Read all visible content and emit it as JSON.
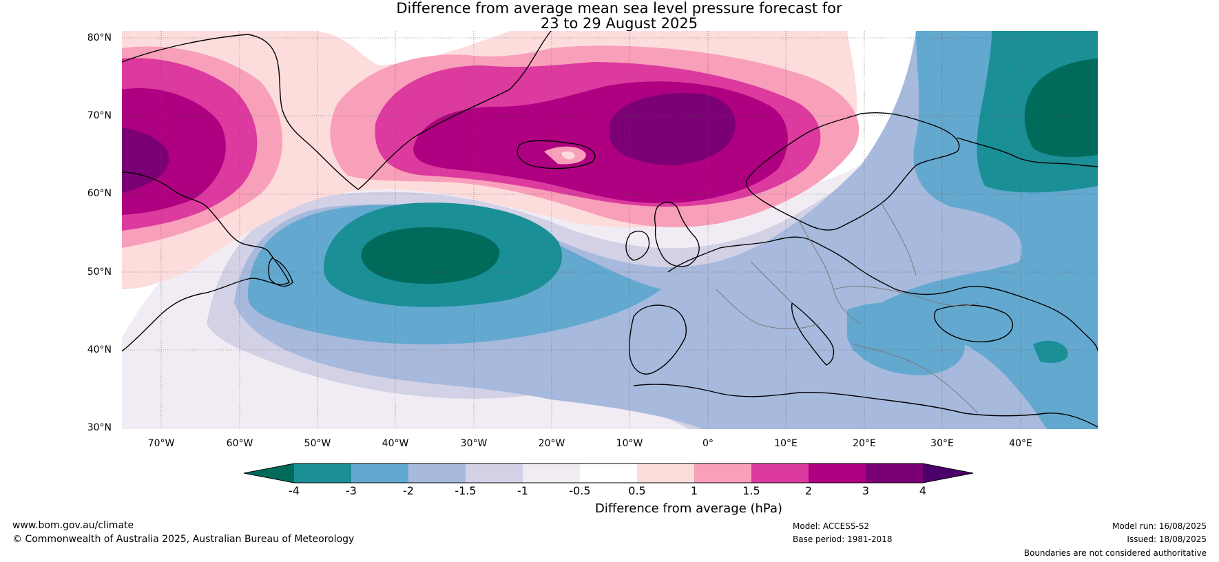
{
  "title_line1": "Difference from average mean sea level pressure forecast for",
  "title_line2": "23 to 29 August 2025",
  "lat_labels": [
    "80°N",
    "70°N",
    "60°N",
    "50°N",
    "40°N",
    "30°N"
  ],
  "lon_labels": [
    "70°W",
    "60°W",
    "50°W",
    "40°W",
    "30°W",
    "20°W",
    "10°W",
    "0°",
    "10°E",
    "20°E",
    "30°E",
    "40°E"
  ],
  "colorbar": {
    "title": "Difference from average (hPa)",
    "tick_labels": [
      "-4",
      "-3",
      "-2",
      "-1.5",
      "-1",
      "-0.5",
      "0.5",
      "1",
      "1.5",
      "2",
      "3",
      "4"
    ],
    "colors": [
      "#006b5a",
      "#1a8f96",
      "#63a8cf",
      "#a7b9dc",
      "#d2d1e6",
      "#f1ecf3",
      "#ffffff",
      "#fddcdc",
      "#f89fba",
      "#dc3a9e",
      "#ae0080",
      "#7c0075",
      "#4c006a"
    ]
  },
  "footer": {
    "website": "www.bom.gov.au/climate",
    "copyright": "© Commonwealth of Australia 2025, Australian Bureau of Meteorology",
    "model": "Model: ACCESS-S2",
    "base_period": "Base period: 1981-2018",
    "model_run": "Model run: 16/08/2025",
    "issued": "Issued: 18/08/2025",
    "disclaimer": "Boundaries are not considered authoritative"
  }
}
